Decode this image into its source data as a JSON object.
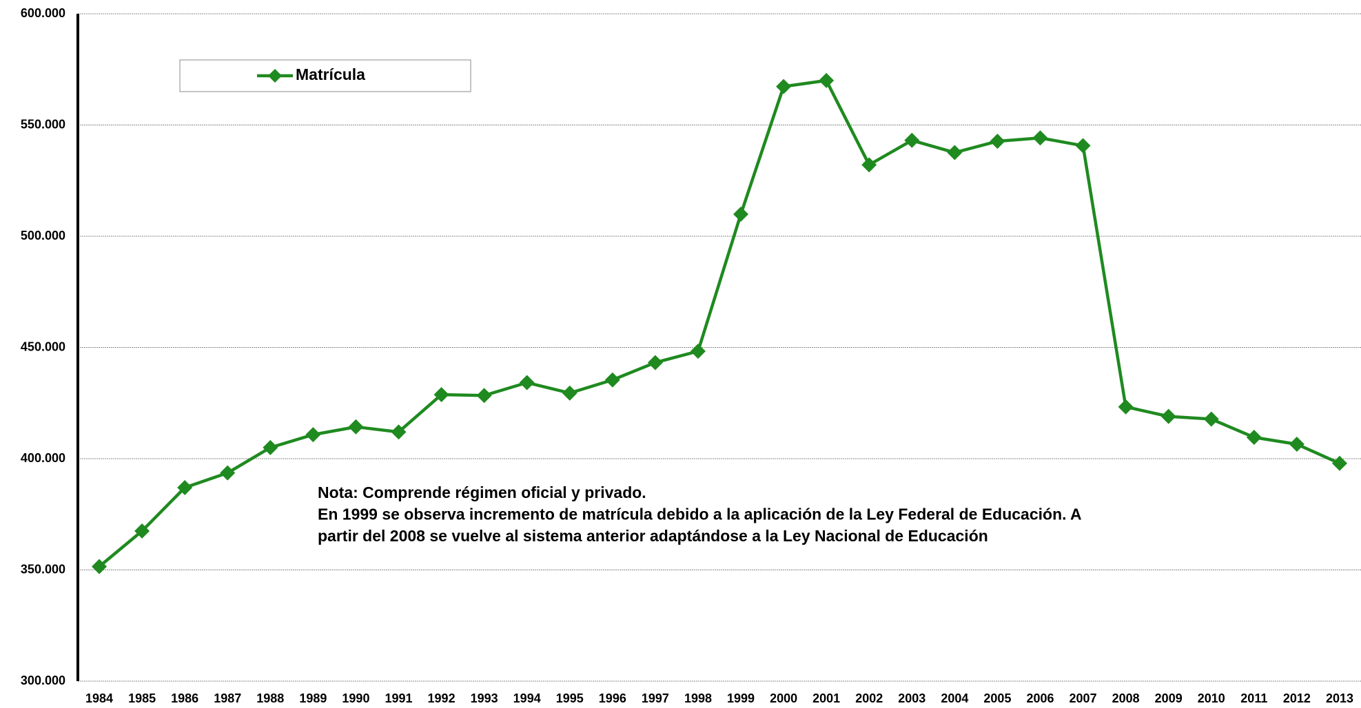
{
  "chart_data": {
    "type": "line",
    "categories": [
      "1984",
      "1985",
      "1986",
      "1987",
      "1988",
      "1989",
      "1990",
      "1991",
      "1992",
      "1993",
      "1994",
      "1995",
      "1996",
      "1997",
      "1998",
      "1999",
      "2000",
      "2001",
      "2002",
      "2003",
      "2004",
      "2005",
      "2006",
      "2007",
      "2008",
      "2009",
      "2010",
      "2011",
      "2012",
      "2013"
    ],
    "series": [
      {
        "name": "Matrícula",
        "color": "#1f8a1f",
        "values": [
          351500,
          367500,
          387000,
          393600,
          405000,
          410800,
          414300,
          412000,
          428800,
          428400,
          434200,
          429500,
          435400,
          443200,
          448300,
          509900,
          567300,
          570000,
          532100,
          543100,
          537600,
          542700,
          544200,
          540700,
          423300,
          419000,
          417800,
          409600,
          406500,
          397900
        ]
      }
    ],
    "ylim": [
      300000,
      600000
    ],
    "yticks": [
      {
        "value": 300000,
        "label": "300.000"
      },
      {
        "value": 350000,
        "label": "350.000"
      },
      {
        "value": 400000,
        "label": "400.000"
      },
      {
        "value": 450000,
        "label": "450.000"
      },
      {
        "value": 500000,
        "label": "500.000"
      },
      {
        "value": 550000,
        "label": "550.000"
      },
      {
        "value": 600000,
        "label": "600.000"
      }
    ],
    "grid": true,
    "legend": "top-left",
    "annotation": [
      "Nota: Comprende régimen oficial y privado.",
      "En 1999 se observa incremento de matrícula  debido a la aplicación de la Ley Federal de Educación. A",
      "partir del 2008 se vuelve al sistema anterior adaptándose a la Ley Nacional de Educación"
    ]
  }
}
